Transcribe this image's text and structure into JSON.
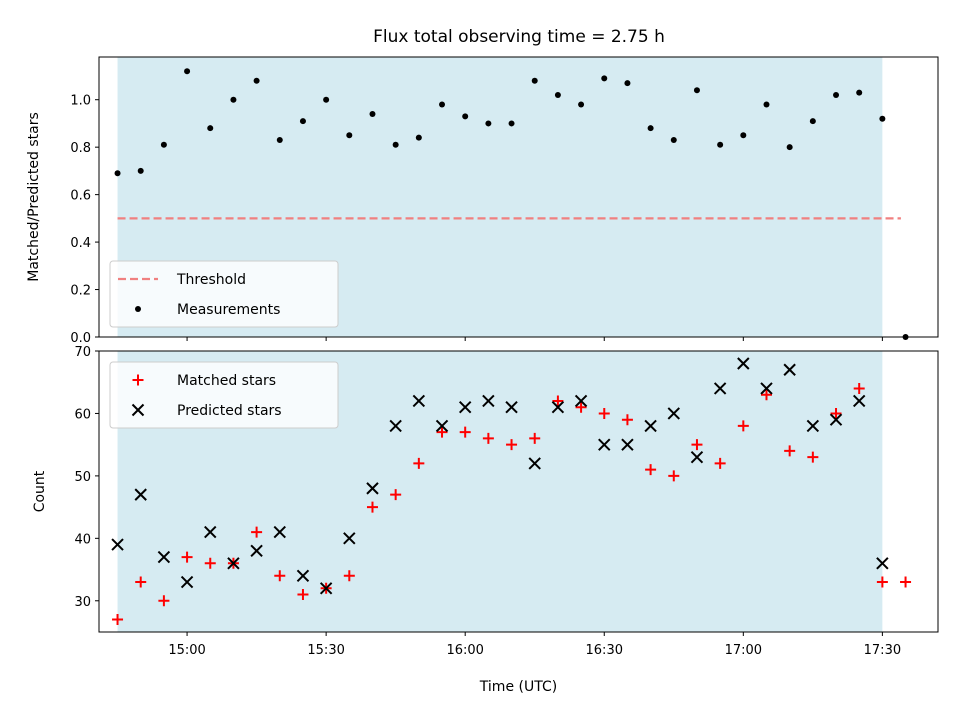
{
  "title": "Flux total observing time = 2.75 h",
  "colors": {
    "shade": "#ADD8E6",
    "threshold": "#F08080",
    "matched": "#FF0000",
    "predicted": "#000000",
    "measurements": "#000000"
  },
  "chart_data": [
    {
      "type": "scatter",
      "ylabel": "Matched/Predicted stars",
      "xlim": [
        "14:41",
        "17:42"
      ],
      "ylim": [
        0,
        1.18
      ],
      "yticks": [
        "0.0",
        "0.2",
        "0.4",
        "0.6",
        "0.8",
        "1.0"
      ],
      "shaded_span": [
        "14:45",
        "17:30"
      ],
      "legend_position": "lower left",
      "threshold": {
        "name": "Threshold",
        "y": 0.5,
        "x_range": [
          "14:45",
          "17:34"
        ],
        "style": "dashed"
      },
      "series": [
        {
          "name": "Measurements",
          "marker": "dot",
          "x": [
            "14:45",
            "14:50",
            "14:55",
            "15:00",
            "15:05",
            "15:10",
            "15:15",
            "15:20",
            "15:25",
            "15:30",
            "15:35",
            "15:40",
            "15:45",
            "15:50",
            "15:55",
            "16:00",
            "16:05",
            "16:10",
            "16:15",
            "16:20",
            "16:25",
            "16:30",
            "16:35",
            "16:40",
            "16:45",
            "16:50",
            "16:55",
            "17:00",
            "17:05",
            "17:10",
            "17:15",
            "17:20",
            "17:25",
            "17:30",
            "17:35"
          ],
          "y": [
            0.69,
            0.7,
            0.81,
            1.12,
            0.88,
            1.0,
            1.08,
            0.83,
            0.91,
            1.0,
            0.85,
            0.94,
            0.81,
            0.84,
            0.98,
            0.93,
            0.9,
            0.9,
            1.08,
            1.02,
            0.98,
            1.09,
            1.07,
            0.88,
            0.83,
            1.04,
            0.81,
            0.85,
            0.98,
            0.8,
            0.91,
            1.02,
            1.03,
            0.92,
            0.0
          ]
        }
      ]
    },
    {
      "type": "scatter",
      "xlabel": "Time (UTC)",
      "ylabel": "Count",
      "xlim": [
        "14:41",
        "17:42"
      ],
      "ylim": [
        25,
        70
      ],
      "yticks": [
        "30",
        "40",
        "50",
        "60",
        "70"
      ],
      "xticks": [
        "15:00",
        "15:30",
        "16:00",
        "16:30",
        "17:00",
        "17:30"
      ],
      "shaded_span": [
        "14:45",
        "17:30"
      ],
      "legend_position": "upper left",
      "series": [
        {
          "name": "Matched stars",
          "marker": "plus",
          "x": [
            "14:45",
            "14:50",
            "14:55",
            "15:00",
            "15:05",
            "15:10",
            "15:15",
            "15:20",
            "15:25",
            "15:30",
            "15:35",
            "15:40",
            "15:45",
            "15:50",
            "15:55",
            "16:00",
            "16:05",
            "16:10",
            "16:15",
            "16:20",
            "16:25",
            "16:30",
            "16:35",
            "16:40",
            "16:45",
            "16:50",
            "16:55",
            "17:00",
            "17:05",
            "17:10",
            "17:15",
            "17:20",
            "17:25",
            "17:30",
            "17:35"
          ],
          "y": [
            27,
            33,
            30,
            37,
            36,
            36,
            41,
            34,
            31,
            32,
            34,
            45,
            47,
            52,
            57,
            57,
            56,
            55,
            56,
            62,
            61,
            60,
            59,
            51,
            50,
            55,
            52,
            58,
            63,
            54,
            53,
            60,
            64,
            33,
            33
          ]
        },
        {
          "name": "Predicted stars",
          "marker": "x",
          "x": [
            "14:45",
            "14:50",
            "14:55",
            "15:00",
            "15:05",
            "15:10",
            "15:15",
            "15:20",
            "15:25",
            "15:30",
            "15:35",
            "15:40",
            "15:45",
            "15:50",
            "15:55",
            "16:00",
            "16:05",
            "16:10",
            "16:15",
            "16:20",
            "16:25",
            "16:30",
            "16:35",
            "16:40",
            "16:45",
            "16:50",
            "16:55",
            "17:00",
            "17:05",
            "17:10",
            "17:15",
            "17:20",
            "17:25",
            "17:30"
          ],
          "y": [
            39,
            47,
            37,
            33,
            41,
            36,
            38,
            41,
            34,
            32,
            40,
            48,
            58,
            62,
            58,
            61,
            62,
            61,
            52,
            61,
            62,
            55,
            55,
            58,
            60,
            53,
            64,
            68,
            64,
            67,
            58,
            59,
            62,
            36
          ]
        }
      ]
    }
  ]
}
